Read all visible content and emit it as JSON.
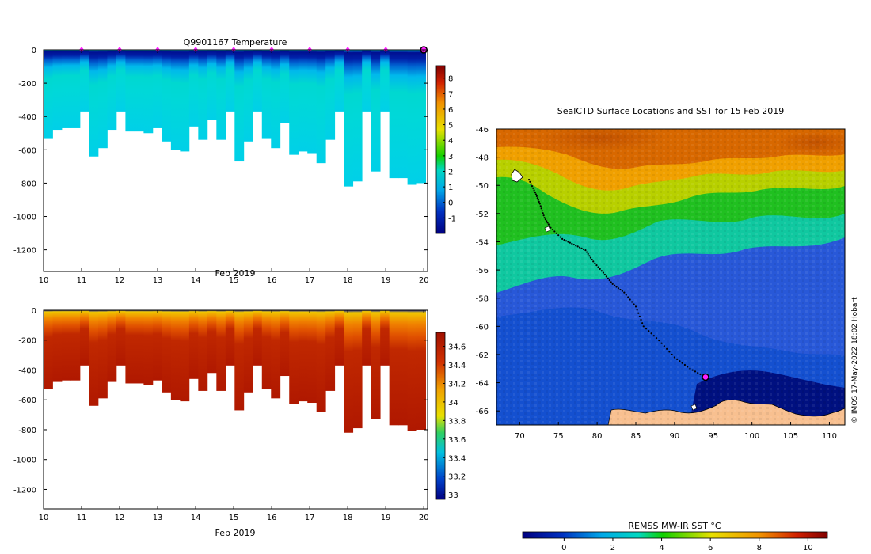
{
  "chart_data": [
    {
      "type": "heatmap",
      "title": "Q9901167  Temperature",
      "xlabel": "Feb 2019",
      "ylabel": "",
      "xlim": [
        10,
        20.1
      ],
      "ylim": [
        -1330,
        0
      ],
      "x_ticks": [
        "10",
        "11",
        "12",
        "13",
        "14",
        "15",
        "16",
        "17",
        "18",
        "19",
        "20"
      ],
      "y_ticks": [
        "0",
        "-200",
        "-400",
        "-600",
        "-800",
        "-1000",
        "-1200"
      ],
      "marker_days": [
        11,
        12,
        13,
        14,
        15,
        16,
        17,
        18,
        19
      ],
      "current_day": 20,
      "profile_max_depth": [
        530,
        480,
        470,
        470,
        370,
        640,
        590,
        480,
        370,
        490,
        490,
        500,
        470,
        550,
        600,
        610,
        460,
        540,
        420,
        540,
        370,
        670,
        550,
        370,
        530,
        590,
        440,
        630,
        610,
        620,
        680,
        540,
        370,
        820,
        790,
        370,
        730,
        370,
        770,
        770,
        810,
        800
      ],
      "colorbar": {
        "min": -2,
        "max": 8.8,
        "ticks": [
          "-1",
          "0",
          "1",
          "2",
          "3",
          "4",
          "5",
          "6",
          "7",
          "8"
        ]
      }
    },
    {
      "type": "heatmap",
      "title": "",
      "xlabel": "Feb 2019",
      "ylabel": "",
      "xlim": [
        10,
        20.1
      ],
      "ylim": [
        -1330,
        0
      ],
      "x_ticks": [
        "10",
        "11",
        "12",
        "13",
        "14",
        "15",
        "16",
        "17",
        "18",
        "19",
        "20"
      ],
      "y_ticks": [
        "0",
        "-200",
        "-400",
        "-600",
        "-800",
        "-1000",
        "-1200"
      ],
      "colorbar": {
        "min": 32.95,
        "max": 34.75,
        "ticks": [
          "33",
          "33.2",
          "33.4",
          "33.6",
          "33.8",
          "34",
          "34.2",
          "34.4",
          "34.6"
        ]
      }
    },
    {
      "type": "heatmap",
      "title": "SealCTD Surface Locations and SST for 15 Feb 2019",
      "xlim": [
        67,
        112
      ],
      "ylim": [
        -67,
        -46
      ],
      "x_ticks": [
        "70",
        "75",
        "80",
        "85",
        "90",
        "95",
        "100",
        "105",
        "110"
      ],
      "y_ticks": [
        "-46",
        "-48",
        "-50",
        "-52",
        "-54",
        "-56",
        "-58",
        "-60",
        "-62",
        "-64",
        "-66"
      ],
      "track": [
        [
          71.2,
          -49.6
        ],
        [
          72.0,
          -50.5
        ],
        [
          72.6,
          -51.3
        ],
        [
          73.2,
          -52.3
        ],
        [
          74.0,
          -53.0
        ],
        [
          75.5,
          -53.8
        ],
        [
          77.0,
          -54.2
        ],
        [
          78.5,
          -54.6
        ],
        [
          79.5,
          -55.4
        ],
        [
          80.8,
          -56.2
        ],
        [
          82.0,
          -57.0
        ],
        [
          83.5,
          -57.6
        ],
        [
          85.0,
          -58.6
        ],
        [
          86.0,
          -60.0
        ],
        [
          88.0,
          -61.0
        ],
        [
          90.0,
          -62.2
        ],
        [
          92.0,
          -63.0
        ],
        [
          94.0,
          -63.6
        ]
      ],
      "current_position": [
        94.0,
        -63.6
      ],
      "colorbar": {
        "label": "REMSS MW-IR SST °C",
        "min": -1.7,
        "max": 10.8,
        "ticks": [
          "0",
          "2",
          "4",
          "6",
          "8",
          "10"
        ]
      },
      "credit": "© IMOS 17-May-2022 18:02 Hobart"
    }
  ]
}
